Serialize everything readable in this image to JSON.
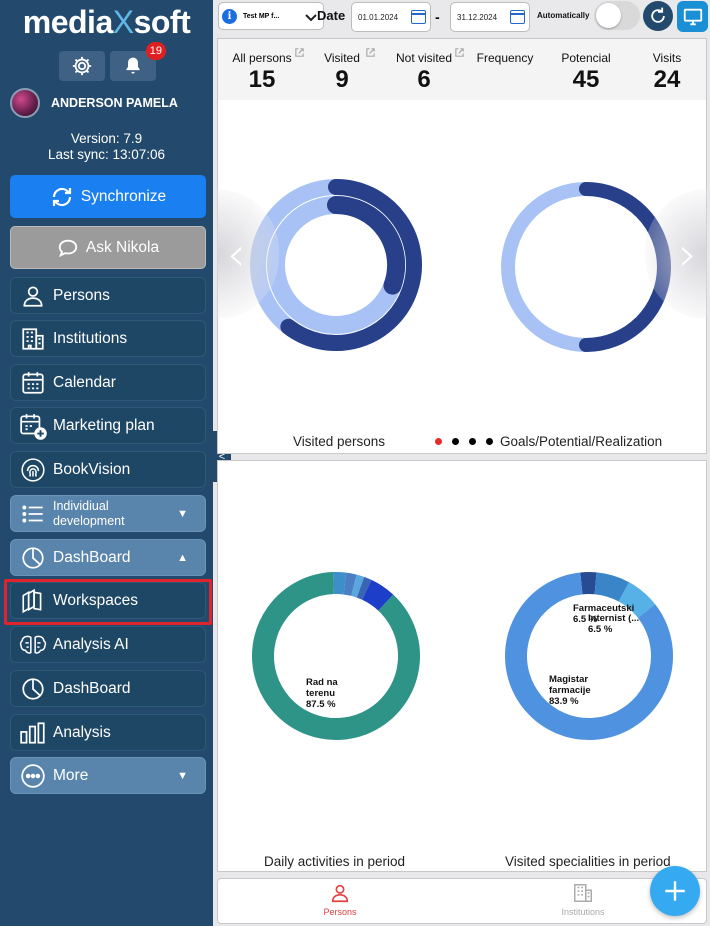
{
  "app": {
    "logo_left": "media",
    "logo_x": "X",
    "logo_right": "soft",
    "notifications_count": "19"
  },
  "user": {
    "name": "ANDERSON PAMELA"
  },
  "version": {
    "version_text": "Version: 7.9",
    "sync_text": "Last sync: 13:07:06"
  },
  "buttons": {
    "synchronize": "Synchronize",
    "ask": "Ask Nikola"
  },
  "sidebar": {
    "items": [
      {
        "label": "Persons",
        "icon": "person-icon"
      },
      {
        "label": "Institutions",
        "icon": "building-icon"
      },
      {
        "label": "Calendar",
        "icon": "calendar-icon"
      },
      {
        "label": "Marketing plan",
        "icon": "calendar-add-icon"
      },
      {
        "label": "BookVision",
        "icon": "fingerprint-icon"
      },
      {
        "label": "Individiual development",
        "icon": "list-icon"
      },
      {
        "label": "DashBoard",
        "icon": "pie-icon"
      },
      {
        "label": "Workspaces",
        "icon": "workspaces-icon"
      },
      {
        "label": "Analysis AI",
        "icon": "brain-icon"
      },
      {
        "label": "DashBoard",
        "icon": "pie-icon"
      },
      {
        "label": "Analysis",
        "icon": "bars-icon"
      },
      {
        "label": "More",
        "icon": "more-icon"
      }
    ],
    "chevron_down": "▼",
    "chevron_up": "▲"
  },
  "topbar": {
    "dropdown_value": "Test MP f...",
    "date_label": "Date",
    "date_from": "01.01.2024",
    "date_sep": "-",
    "date_to": "31.12.2024",
    "auto_label": "Automatically",
    "auto_enabled": false
  },
  "stats": [
    {
      "label": "All persons",
      "value": "15"
    },
    {
      "label": "Visited",
      "value": "9"
    },
    {
      "label": "Not visited",
      "value": "6"
    },
    {
      "label": "Frequency",
      "value": ""
    },
    {
      "label": "Potencial",
      "value": "45"
    },
    {
      "label": "Visits",
      "value": "24"
    }
  ],
  "panel1": {
    "caption_left": "Visited persons",
    "caption_right": "Goals/Potential/Realization",
    "carousel_active_index": 0,
    "carousel_count": 4,
    "colors": {
      "dark": "#283f8a",
      "light": "#a8c2f6",
      "dot_active": "#e52b2b"
    }
  },
  "panel2": {
    "caption_left": "Daily activities in period",
    "caption_right": "Visited specialities in period",
    "pie1": [
      {
        "label": "Rad na terenu",
        "percent": "87.5 %",
        "value": 87.5,
        "color": "#2e9488"
      },
      {
        "label": "",
        "value": 2.5,
        "color": "#3e8fc9"
      },
      {
        "label": "",
        "value": 2.0,
        "color": "#4a7fc4"
      },
      {
        "label": "",
        "value": 1.5,
        "color": "#5aa6df"
      },
      {
        "label": "",
        "value": 1.5,
        "color": "#3a64b4"
      },
      {
        "label": "",
        "value": 5.0,
        "color": "#1d3ec9"
      }
    ],
    "pie2": [
      {
        "label": "Magistar farmacije",
        "percent": "83.9 %",
        "value": 83.9,
        "color": "#4f92df"
      },
      {
        "label": "Farmaceutski tehnic...",
        "percent": "6.5 %",
        "value": 6.5,
        "color": "#3a84c8"
      },
      {
        "label": "Internist (...",
        "percent": "6.5 %",
        "value": 6.5,
        "color": "#56b1e6"
      },
      {
        "label": "",
        "value": 3.1,
        "color": "#284c94"
      }
    ]
  },
  "bottombar": {
    "tabs": [
      {
        "label": "Persons",
        "active": true
      },
      {
        "label": "Institutions",
        "active": false
      }
    ],
    "active_color": "#e44040"
  }
}
